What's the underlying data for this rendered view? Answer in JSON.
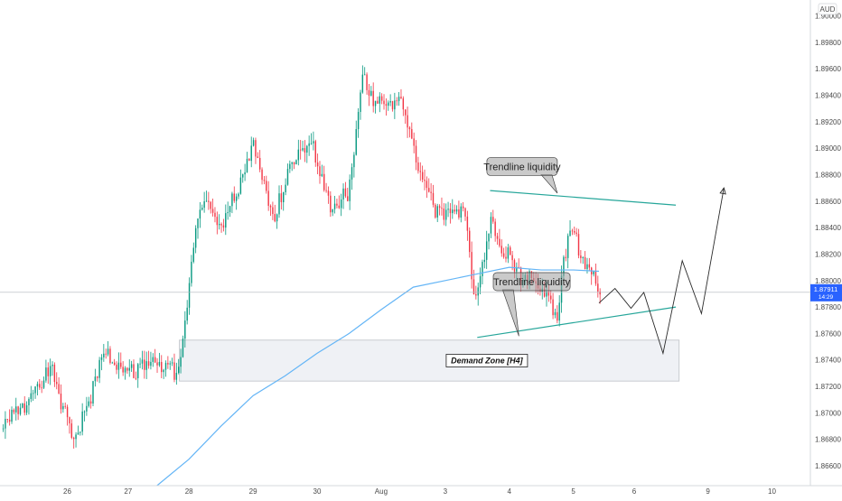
{
  "chart_data": {
    "type": "candlestick",
    "currency": "AUD",
    "y_ticks": [
      "1.90000",
      "1.89800",
      "1.89600",
      "1.89400",
      "1.89200",
      "1.89000",
      "1.88800",
      "1.88600",
      "1.88400",
      "1.88200",
      "1.88000",
      "1.87800",
      "1.87600",
      "1.87400",
      "1.87200",
      "1.87000",
      "1.86800",
      "1.86600"
    ],
    "y_tick_values": [
      1.9,
      1.898,
      1.896,
      1.894,
      1.892,
      1.89,
      1.888,
      1.886,
      1.884,
      1.882,
      1.88,
      1.878,
      1.876,
      1.874,
      1.872,
      1.87,
      1.868,
      1.866
    ],
    "ylim": [
      1.8645,
      1.9012
    ],
    "x_ticks": [
      {
        "label": "26",
        "t": 0.6
      },
      {
        "label": "27",
        "t": 1.55
      },
      {
        "label": "28",
        "t": 2.5
      },
      {
        "label": "29",
        "t": 3.5
      },
      {
        "label": "30",
        "t": 4.5
      },
      {
        "label": "Aug",
        "t": 5.5
      },
      {
        "label": "3",
        "t": 6.5
      },
      {
        "label": "4",
        "t": 7.5
      },
      {
        "label": "5",
        "t": 8.5
      },
      {
        "label": "6",
        "t": 9.45
      },
      {
        "label": "9",
        "t": 10.6
      },
      {
        "label": "10",
        "t": 11.6
      }
    ],
    "xlim": [
      -0.45,
      12.2
    ],
    "current_price": {
      "price": "1.87911",
      "time_left": "14:29",
      "value": 1.87911
    },
    "moving_average": {
      "color": "#64b5f6",
      "points": [
        [
          2.0,
          1.8645
        ],
        [
          2.5,
          1.8665
        ],
        [
          3.0,
          1.869
        ],
        [
          3.5,
          1.8713
        ],
        [
          4.0,
          1.8728
        ],
        [
          4.5,
          1.8745
        ],
        [
          5.0,
          1.876
        ],
        [
          5.5,
          1.8778
        ],
        [
          6.0,
          1.8795
        ],
        [
          6.5,
          1.88
        ],
        [
          7.0,
          1.8805
        ],
        [
          7.5,
          1.881
        ],
        [
          8.0,
          1.8808
        ],
        [
          8.5,
          1.8808
        ],
        [
          8.9,
          1.8807
        ]
      ]
    },
    "demand_zone": {
      "label": "Demand Zone [H4]",
      "t_start": 2.35,
      "t_end": 10.15,
      "price_top": 1.8755,
      "price_bottom": 1.8724
    },
    "upper_trendline": {
      "color": "#26a69a",
      "from": [
        7.2,
        1.8868
      ],
      "to": [
        10.1,
        1.8857
      ]
    },
    "lower_trendline": {
      "color": "#26a69a",
      "from": [
        7.0,
        1.8757
      ],
      "to": [
        10.1,
        1.878
      ]
    },
    "callouts": [
      {
        "text": "Trendline liquidity",
        "box_t": 7.25,
        "box_p": 1.8806,
        "width_t": 1.2,
        "pointer_to": [
          7.65,
          1.8758
        ]
      },
      {
        "text": "Trendline liquidity",
        "box_t": 7.15,
        "box_p": 1.8893,
        "width_t": 1.1,
        "pointer_to": [
          8.25,
          1.8866
        ]
      }
    ],
    "projection": [
      [
        8.9,
        1.8783
      ],
      [
        9.15,
        1.8794
      ],
      [
        9.4,
        1.8779
      ],
      [
        9.6,
        1.8791
      ],
      [
        9.9,
        1.8745
      ],
      [
        10.2,
        1.8815
      ],
      [
        10.5,
        1.8775
      ],
      [
        10.85,
        1.887
      ]
    ],
    "up_color": "#089981",
    "down_color": "#f23645",
    "candle_seed": [
      -0.4,
      1.8688,
      0.35,
      1.8732,
      0.7,
      1.8676,
      1.2,
      1.8748,
      1.5,
      1.8728,
      2.0,
      1.8738,
      2.35,
      1.873,
      2.5,
      1.88,
      2.65,
      1.8858,
      3.0,
      1.8843,
      3.5,
      1.8903,
      3.8,
      1.8845,
      4.1,
      1.8892,
      4.4,
      1.8902,
      4.7,
      1.8858,
      5.0,
      1.8868,
      5.2,
      1.8952,
      5.4,
      1.8935,
      5.8,
      1.8937,
      6.1,
      1.888,
      6.3,
      1.8852,
      6.55,
      1.885,
      6.8,
      1.8855,
      6.95,
      1.8775,
      7.2,
      1.8845,
      7.35,
      1.8827,
      7.6,
      1.881,
      7.9,
      1.88,
      8.05,
      1.879,
      8.25,
      1.8775,
      8.45,
      1.885,
      8.6,
      1.8815,
      8.8,
      1.881,
      8.95,
      1.879
    ]
  }
}
